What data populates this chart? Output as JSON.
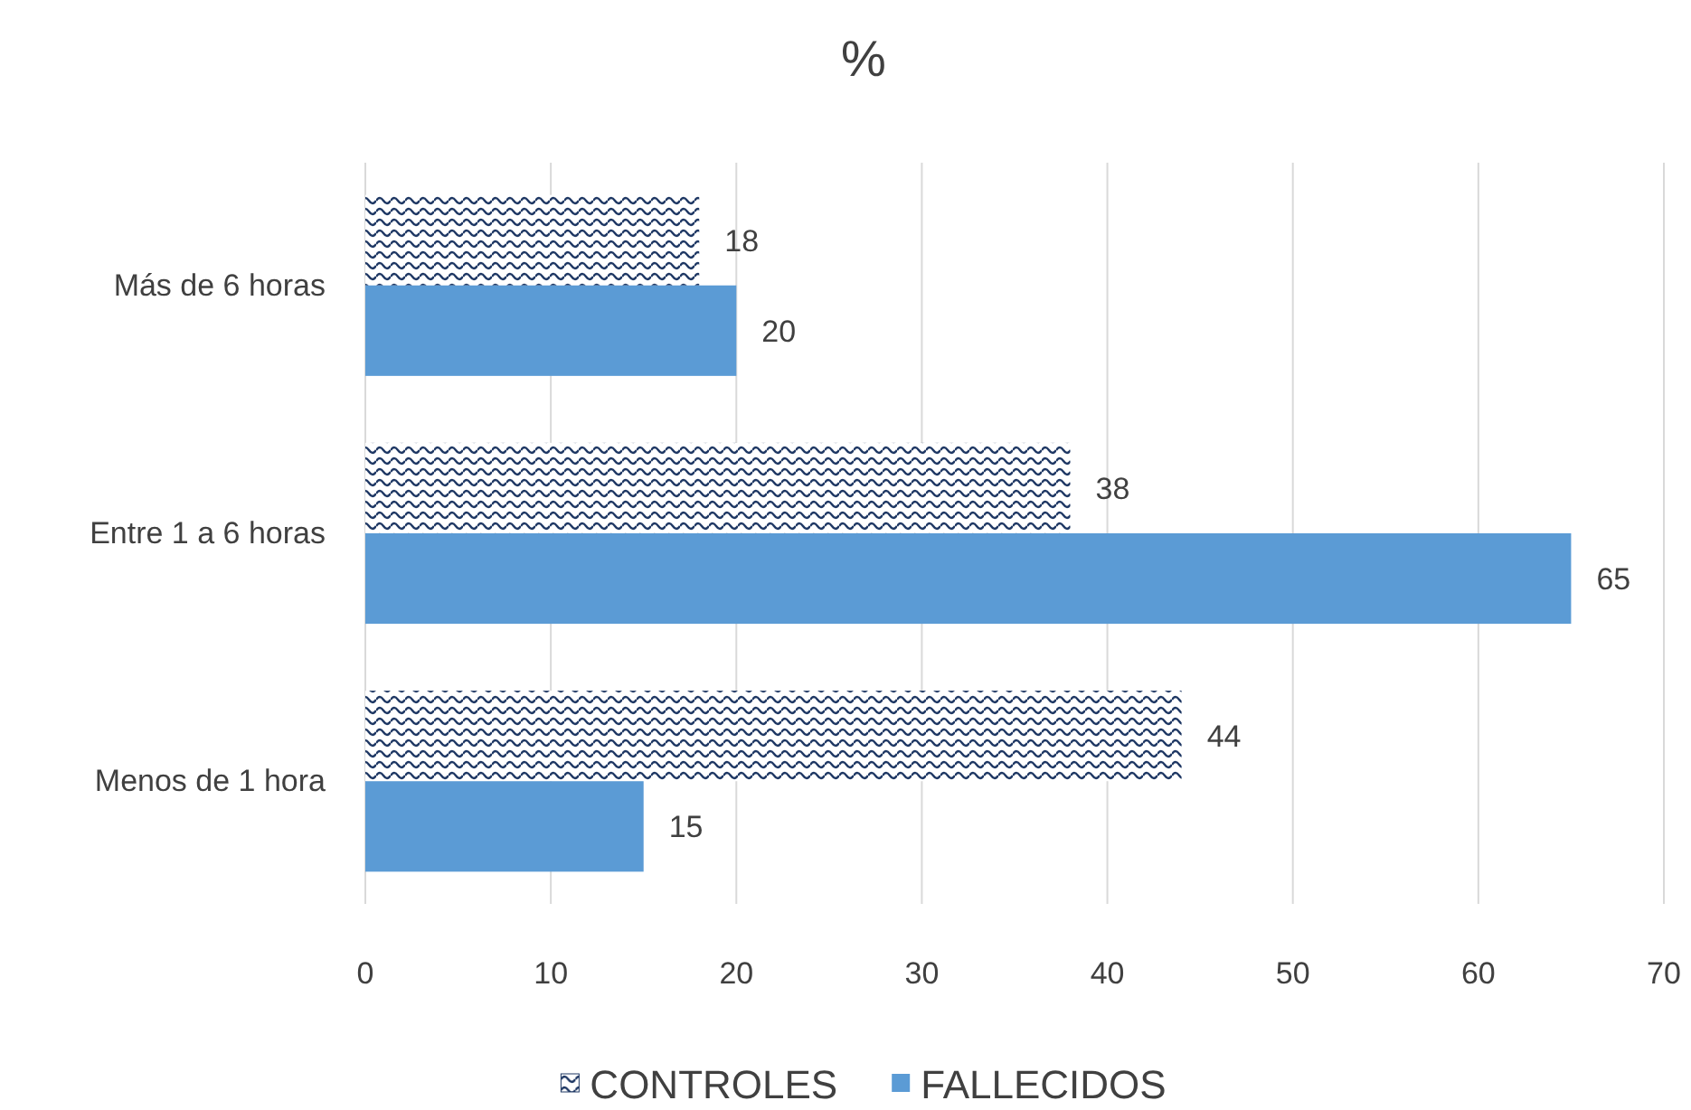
{
  "chart_data": {
    "type": "bar",
    "orientation": "horizontal",
    "title": "%",
    "categories": [
      "Más de 6 horas",
      "Entre 1 a 6 horas",
      "Menos de 1 hora"
    ],
    "series": [
      {
        "name": "CONTROLES",
        "color": "#1f3864",
        "values": [
          18,
          38,
          44
        ]
      },
      {
        "name": "FALLECIDOS",
        "color": "#5b9bd5",
        "values": [
          20,
          65,
          15
        ]
      }
    ],
    "xlim": [
      0,
      70
    ],
    "xticks": [
      0,
      10,
      20,
      30,
      40,
      50,
      60,
      70
    ],
    "grid": "x",
    "legend": "bottom",
    "data_labels": true
  }
}
